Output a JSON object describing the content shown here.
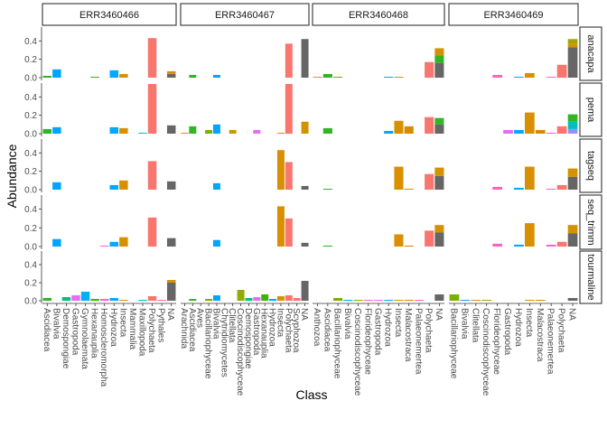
{
  "chart_data": {
    "type": "bar",
    "xlabel": "Class",
    "ylabel": "Abundance",
    "ylim": [
      0,
      0.55
    ],
    "y_ticks": [
      "0.0",
      "0.2",
      "0.4"
    ],
    "grid": false,
    "legend": "none",
    "columns": [
      "ERR3460466",
      "ERR3460467",
      "ERR3460468",
      "ERR3460469"
    ],
    "rows": [
      "anacapa",
      "pema",
      "tagseq",
      "seq_trimm",
      "tourmaline"
    ],
    "categories": [
      [
        "Ascidiacea",
        "Bivalvia",
        "Demospongiae",
        "Gastropoda",
        "Gymnolaemata",
        "Hexanauplia",
        "Homoscleromorpha",
        "Hydrozoa",
        "Insecta",
        "Mammalia",
        "Maxillopoda",
        "Polychaeta",
        "Pythales",
        "NA"
      ],
      [
        "Arachnida",
        "Ascidiacea",
        "Aves",
        "Bacillariophyceae",
        "Bivalvia",
        "Chytridiomycetes",
        "Clitellata",
        "Coscinodiscophyceae",
        "Demospongiae",
        "Gastropoda",
        "Hexanauplia",
        "Hydrozoa",
        "Insecta",
        "Polychaeta",
        "Scyphozoa",
        "NA"
      ],
      [
        "Anthozoa",
        "Ascidiacea",
        "Bacillariophyceae",
        "Bivalvia",
        "Coscinodiscophyceae",
        "Florideophyceae",
        "Gastropoda",
        "Hydrozoa",
        "Insecta",
        "Malacostraca",
        "Palaeonemertea",
        "Polychaeta",
        "NA"
      ],
      [
        "Bacillariophyceae",
        "Bivalvia",
        "Clitellata",
        "Coscinodiscophyceae",
        "Florideophyceae",
        "Gastropoda",
        "Hydrozoa",
        "Insecta",
        "Malacostraca",
        "Palaeonemertea",
        "Polychaeta",
        "NA"
      ]
    ],
    "colors": {
      "Anthozoa": "#F8766D",
      "Arachnida": "#E88526",
      "Ascidiacea": "#31B425",
      "Aves": "#00BA38",
      "Bacillariophyceae": "#7CAE00",
      "Bivalvia": "#00A5FF",
      "Chytridiomycetes": "#00BFC4",
      "Clitellata": "#C49A00",
      "Coscinodiscophyceae": "#93AA00",
      "Demospongiae": "#00BF7D",
      "Florideophyceae": "#FF62BC",
      "Gastropoda": "#E76BF3",
      "Gymnolaemata": "#00B0F6",
      "Hexanauplia": "#39B600",
      "Homoscleromorpha": "#F763E0",
      "Hydrozoa": "#00A9FF",
      "Insecta": "#D89000",
      "Malacostraca": "#D98A00",
      "Mammalia": "#00C19A",
      "Maxillopoda": "#00BCD8",
      "Palaeonemertea": "#FD61D1",
      "Polychaeta": "#F8766D",
      "Pythales": "#FF6C91",
      "Scyphozoa": "#F8766D",
      "NA": "#666666",
      "NA_stack_green": "#31B425",
      "NA_stack_orange": "#D39200",
      "NA_stack_olive": "#A3A500",
      "NA_stack_teal": "#00BFC4",
      "NA_stack_purple": "#9590FF",
      "NA_stack_pink": "#FF6C91"
    },
    "panels": [
      {
        "row": "anacapa",
        "col": "ERR3460466",
        "bars": [
          {
            "category": "Ascidiacea",
            "value": 0.02
          },
          {
            "category": "Bivalvia",
            "value": 0.09
          },
          {
            "category": "Hexanauplia",
            "value": 0.01
          },
          {
            "category": "Hydrozoa",
            "value": 0.08
          },
          {
            "category": "Insecta",
            "value": 0.04
          },
          {
            "category": "Polychaeta",
            "value": 0.43
          },
          {
            "category": "NA",
            "segments": [
              {
                "color_key": "NA",
                "value": 0.04
              },
              {
                "color_key": "NA_stack_orange",
                "value": 0.03
              }
            ]
          }
        ]
      },
      {
        "row": "anacapa",
        "col": "ERR3460467",
        "bars": [
          {
            "category": "Ascidiacea",
            "value": 0.03
          },
          {
            "category": "Bivalvia",
            "value": 0.03
          },
          {
            "category": "Polychaeta",
            "value": 0.37
          },
          {
            "category": "NA",
            "value": 0.42
          }
        ]
      },
      {
        "row": "anacapa",
        "col": "ERR3460468",
        "bars": [
          {
            "category": "Anthozoa",
            "value": 0.01
          },
          {
            "category": "Ascidiacea",
            "value": 0.04
          },
          {
            "category": "Bacillariophyceae",
            "value": 0.01
          },
          {
            "category": "Hydrozoa",
            "value": 0.01
          },
          {
            "category": "Insecta",
            "value": 0.01
          },
          {
            "category": "Polychaeta",
            "value": 0.17
          },
          {
            "category": "NA",
            "segments": [
              {
                "color_key": "NA",
                "value": 0.16
              },
              {
                "color_key": "NA_stack_green",
                "value": 0.08
              },
              {
                "color_key": "NA_stack_orange",
                "value": 0.08
              }
            ]
          }
        ]
      },
      {
        "row": "anacapa",
        "col": "ERR3460469",
        "bars": [
          {
            "category": "Florideophyceae",
            "value": 0.03
          },
          {
            "category": "Hydrozoa",
            "value": 0.01
          },
          {
            "category": "Insecta",
            "value": 0.05
          },
          {
            "category": "Palaeonemertea",
            "value": 0.01
          },
          {
            "category": "Polychaeta",
            "value": 0.14
          },
          {
            "category": "NA",
            "segments": [
              {
                "color_key": "NA",
                "value": 0.33
              },
              {
                "color_key": "NA_stack_orange",
                "value": 0.04
              },
              {
                "color_key": "NA_stack_olive",
                "value": 0.05
              }
            ]
          }
        ]
      },
      {
        "row": "pema",
        "col": "ERR3460466",
        "bars": [
          {
            "category": "Ascidiacea",
            "value": 0.05
          },
          {
            "category": "Bivalvia",
            "value": 0.07
          },
          {
            "category": "Hydrozoa",
            "value": 0.07
          },
          {
            "category": "Insecta",
            "value": 0.06
          },
          {
            "category": "Maxillopoda",
            "value": 0.01
          },
          {
            "category": "Polychaeta",
            "value": 0.54
          },
          {
            "category": "NA",
            "value": 0.09
          }
        ]
      },
      {
        "row": "pema",
        "col": "ERR3460467",
        "bars": [
          {
            "category": "Arachnida",
            "value": 0.01
          },
          {
            "category": "Ascidiacea",
            "value": 0.08
          },
          {
            "category": "Bacillariophyceae",
            "value": 0.04
          },
          {
            "category": "Bivalvia",
            "value": 0.1
          },
          {
            "category": "Clitellata",
            "value": 0.04
          },
          {
            "category": "Gastropoda",
            "value": 0.04
          },
          {
            "category": "Insecta",
            "value": 0.01
          },
          {
            "category": "Polychaeta",
            "value": 0.54
          },
          {
            "category": "NA",
            "segments": [
              {
                "color_key": "NA_stack_orange",
                "value": 0.13
              }
            ]
          }
        ]
      },
      {
        "row": "pema",
        "col": "ERR3460468",
        "bars": [
          {
            "category": "Ascidiacea",
            "value": 0.06
          },
          {
            "category": "Hydrozoa",
            "value": 0.03
          },
          {
            "category": "Insecta",
            "value": 0.14
          },
          {
            "category": "Malacostraca",
            "value": 0.08
          },
          {
            "category": "Polychaeta",
            "value": 0.18
          },
          {
            "category": "NA",
            "segments": [
              {
                "color_key": "NA",
                "value": 0.1
              },
              {
                "color_key": "NA_stack_green",
                "value": 0.07
              }
            ]
          }
        ]
      },
      {
        "row": "pema",
        "col": "ERR3460469",
        "bars": [
          {
            "category": "Gastropoda",
            "value": 0.04
          },
          {
            "category": "Hydrozoa",
            "value": 0.04
          },
          {
            "category": "Insecta",
            "value": 0.23
          },
          {
            "category": "Malacostraca",
            "value": 0.04
          },
          {
            "category": "Palaeonemertea",
            "value": 0.01
          },
          {
            "category": "Polychaeta",
            "value": 0.08
          },
          {
            "category": "NA",
            "segments": [
              {
                "color_key": "NA_stack_purple",
                "value": 0.05
              },
              {
                "color_key": "NA_stack_teal",
                "value": 0.08
              },
              {
                "color_key": "NA_stack_green",
                "value": 0.08
              }
            ]
          }
        ]
      },
      {
        "row": "tagseq",
        "col": "ERR3460466",
        "bars": [
          {
            "category": "Bivalvia",
            "value": 0.08
          },
          {
            "category": "Hydrozoa",
            "value": 0.05
          },
          {
            "category": "Insecta",
            "value": 0.1
          },
          {
            "category": "Polychaeta",
            "value": 0.31
          },
          {
            "category": "NA",
            "value": 0.09
          }
        ]
      },
      {
        "row": "tagseq",
        "col": "ERR3460467",
        "bars": [
          {
            "category": "Bivalvia",
            "value": 0.07
          },
          {
            "category": "Insecta",
            "value": 0.43
          },
          {
            "category": "Polychaeta",
            "value": 0.3
          },
          {
            "category": "NA",
            "value": 0.04
          }
        ]
      },
      {
        "row": "tagseq",
        "col": "ERR3460468",
        "bars": [
          {
            "category": "Ascidiacea",
            "value": 0.01
          },
          {
            "category": "Insecta",
            "value": 0.25
          },
          {
            "category": "Malacostraca",
            "value": 0.01
          },
          {
            "category": "Polychaeta",
            "value": 0.17
          },
          {
            "category": "NA",
            "segments": [
              {
                "color_key": "NA",
                "value": 0.15
              },
              {
                "color_key": "NA_stack_orange",
                "value": 0.09
              }
            ]
          }
        ]
      },
      {
        "row": "tagseq",
        "col": "ERR3460469",
        "bars": [
          {
            "category": "Florideophyceae",
            "value": 0.03
          },
          {
            "category": "Hydrozoa",
            "value": 0.02
          },
          {
            "category": "Insecta",
            "value": 0.25
          },
          {
            "category": "Palaeonemertea",
            "value": 0.01
          },
          {
            "category": "Polychaeta",
            "value": 0.05
          },
          {
            "category": "NA",
            "segments": [
              {
                "color_key": "NA",
                "value": 0.14
              },
              {
                "color_key": "NA_stack_orange",
                "value": 0.09
              }
            ]
          }
        ]
      },
      {
        "row": "seq_trimm",
        "col": "ERR3460466",
        "bars": [
          {
            "category": "Bivalvia",
            "value": 0.08
          },
          {
            "category": "Homoscleromorpha",
            "value": 0.01
          },
          {
            "category": "Hydrozoa",
            "value": 0.05
          },
          {
            "category": "Insecta",
            "value": 0.1
          },
          {
            "category": "Polychaeta",
            "value": 0.31
          },
          {
            "category": "NA",
            "value": 0.09
          }
        ]
      },
      {
        "row": "seq_trimm",
        "col": "ERR3460467",
        "bars": [
          {
            "category": "Bivalvia",
            "value": 0.07
          },
          {
            "category": "Insecta",
            "value": 0.43
          },
          {
            "category": "Polychaeta",
            "value": 0.3
          },
          {
            "category": "NA",
            "value": 0.04
          }
        ]
      },
      {
        "row": "seq_trimm",
        "col": "ERR3460468",
        "bars": [
          {
            "category": "Ascidiacea",
            "value": 0.01
          },
          {
            "category": "Insecta",
            "value": 0.13
          },
          {
            "category": "Malacostraca",
            "value": 0.01
          },
          {
            "category": "Polychaeta",
            "value": 0.17
          },
          {
            "category": "NA",
            "segments": [
              {
                "color_key": "NA",
                "value": 0.15
              },
              {
                "color_key": "NA_stack_orange",
                "value": 0.08
              }
            ]
          }
        ]
      },
      {
        "row": "seq_trimm",
        "col": "ERR3460469",
        "bars": [
          {
            "category": "Florideophyceae",
            "value": 0.03
          },
          {
            "category": "Hydrozoa",
            "value": 0.02
          },
          {
            "category": "Insecta",
            "value": 0.25
          },
          {
            "category": "Palaeonemertea",
            "value": 0.02
          },
          {
            "category": "Polychaeta",
            "value": 0.05
          },
          {
            "category": "NA",
            "segments": [
              {
                "color_key": "NA",
                "value": 0.14
              },
              {
                "color_key": "NA_stack_orange",
                "value": 0.09
              }
            ]
          }
        ]
      },
      {
        "row": "tourmaline",
        "col": "ERR3460466",
        "bars": [
          {
            "category": "Ascidiacea",
            "value": 0.03
          },
          {
            "category": "Demospongiae",
            "value": 0.04
          },
          {
            "category": "Gastropoda",
            "value": 0.06
          },
          {
            "category": "Gymnolaemata",
            "value": 0.1
          },
          {
            "category": "Hexanauplia",
            "value": 0.02
          },
          {
            "category": "Homoscleromorpha",
            "value": 0.02
          },
          {
            "category": "Hydrozoa",
            "value": 0.03
          },
          {
            "category": "Insecta",
            "value": 0.01
          },
          {
            "category": "Maxillopoda",
            "value": 0.01
          },
          {
            "category": "Polychaeta",
            "value": 0.05
          },
          {
            "category": "Pythales",
            "value": 0.01
          },
          {
            "category": "NA",
            "segments": [
              {
                "color_key": "NA",
                "value": 0.2
              },
              {
                "color_key": "NA_stack_orange",
                "value": 0.03
              }
            ]
          }
        ]
      },
      {
        "row": "tourmaline",
        "col": "ERR3460467",
        "bars": [
          {
            "category": "Ascidiacea",
            "value": 0.02
          },
          {
            "category": "Bacillariophyceae",
            "value": 0.02
          },
          {
            "category": "Bivalvia",
            "value": 0.06
          },
          {
            "category": "Coscinodiscophyceae",
            "value": 0.12
          },
          {
            "category": "Demospongiae",
            "value": 0.03
          },
          {
            "category": "Gastropoda",
            "value": 0.04
          },
          {
            "category": "Hexanauplia",
            "value": 0.07
          },
          {
            "category": "Hydrozoa",
            "value": 0.02
          },
          {
            "category": "Insecta",
            "value": 0.05
          },
          {
            "category": "Polychaeta",
            "value": 0.06
          },
          {
            "category": "Scyphozoa",
            "value": 0.03
          },
          {
            "category": "NA",
            "value": 0.22
          }
        ]
      },
      {
        "row": "tourmaline",
        "col": "ERR3460468",
        "bars": [
          {
            "category": "Bacillariophyceae",
            "value": 0.03
          },
          {
            "category": "Bivalvia",
            "value": 0.01
          },
          {
            "category": "Coscinodiscophyceae",
            "value": 0.01
          },
          {
            "category": "Florideophyceae",
            "value": 0.01
          },
          {
            "category": "Gastropoda",
            "value": 0.01
          },
          {
            "category": "Hydrozoa",
            "value": 0.01
          },
          {
            "category": "Insecta",
            "value": 0.01
          },
          {
            "category": "Malacostraca",
            "value": 0.01
          },
          {
            "category": "Palaeonemertea",
            "value": 0.01
          },
          {
            "category": "NA",
            "value": 0.07
          }
        ]
      },
      {
        "row": "tourmaline",
        "col": "ERR3460469",
        "bars": [
          {
            "category": "Bacillariophyceae",
            "value": 0.07
          },
          {
            "category": "Bivalvia",
            "value": 0.01
          },
          {
            "category": "Clitellata",
            "value": 0.01
          },
          {
            "category": "Coscinodiscophyceae",
            "value": 0.01
          },
          {
            "category": "Insecta",
            "value": 0.01
          },
          {
            "category": "Malacostraca",
            "value": 0.01
          },
          {
            "category": "NA",
            "value": 0.03
          }
        ]
      }
    ]
  }
}
